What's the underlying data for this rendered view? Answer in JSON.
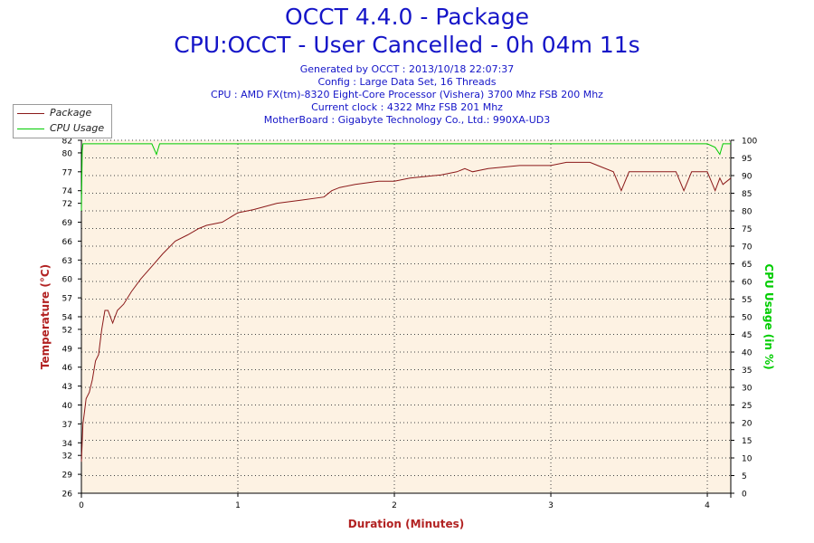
{
  "title": "OCCT 4.4.0 - Package",
  "subtitle": "CPU:OCCT - User Cancelled - 0h 04m 11s",
  "info_lines": [
    "Generated by OCCT : 2013/10/18 22:07:37",
    "Config : Large Data Set, 16 Threads",
    "CPU : AMD FX(tm)-8320 Eight-Core Processor (Vishera) 3700 Mhz FSB 200 Mhz",
    "Current clock : 4322 Mhz FSB 201 Mhz",
    "MotherBoard : Gigabyte Technology Co., Ltd.: 990XA-UD3"
  ],
  "colors": {
    "title": "#1515c8",
    "plot_bg": "#fdf2e3",
    "temperature": "#8b1a1a",
    "cpu_usage": "#00cc00",
    "grid": "#444444"
  },
  "chart_data": {
    "type": "line",
    "xlabel": "Duration (Minutes)",
    "ylabel": "Temperature (°C)",
    "y2label": "CPU Usage (in %)",
    "xlim": [
      0,
      4.15
    ],
    "ylim": [
      26,
      82
    ],
    "y2lim": [
      0,
      100
    ],
    "x_ticks": [
      0,
      1,
      2,
      3,
      4
    ],
    "y_ticks": [
      26,
      29,
      32,
      34,
      37,
      40,
      43,
      46,
      49,
      52,
      54,
      57,
      60,
      63,
      66,
      69,
      72,
      74,
      77,
      80,
      82
    ],
    "y2_ticks": [
      0,
      5,
      10,
      15,
      20,
      25,
      30,
      35,
      40,
      45,
      50,
      55,
      60,
      65,
      70,
      75,
      80,
      85,
      90,
      95,
      100
    ],
    "grid": true,
    "legend": "top-left",
    "legend_entries": [
      "Package",
      "CPU Usage"
    ],
    "series": [
      {
        "name": "Package",
        "axis": "left",
        "x": [
          0,
          0.01,
          0.02,
          0.03,
          0.05,
          0.07,
          0.09,
          0.11,
          0.13,
          0.15,
          0.17,
          0.2,
          0.23,
          0.27,
          0.32,
          0.38,
          0.45,
          0.52,
          0.6,
          0.68,
          0.75,
          0.8,
          0.9,
          1.0,
          1.1,
          1.25,
          1.4,
          1.55,
          1.6,
          1.65,
          1.75,
          1.9,
          2.0,
          2.1,
          2.3,
          2.4,
          2.45,
          2.5,
          2.6,
          2.8,
          2.9,
          3.0,
          3.1,
          3.2,
          3.25,
          3.3,
          3.4,
          3.45,
          3.5,
          3.55,
          3.6,
          3.7,
          3.8,
          3.85,
          3.9,
          3.95,
          4.0,
          4.05,
          4.08,
          4.1,
          4.15
        ],
        "y": [
          31,
          37,
          39,
          41,
          42,
          44,
          47,
          48,
          52,
          55,
          55,
          53,
          55,
          56,
          58,
          60,
          62,
          64,
          66,
          67,
          68,
          68.5,
          69,
          70.5,
          71,
          72,
          72.5,
          73,
          74,
          74.5,
          75,
          75.5,
          75.5,
          76,
          76.5,
          77,
          77.5,
          77,
          77.5,
          78,
          78,
          78,
          78.5,
          78.5,
          78.5,
          78,
          77,
          74,
          77,
          77,
          77,
          77,
          77,
          74,
          77,
          77,
          77,
          74,
          76,
          75,
          76
        ]
      },
      {
        "name": "CPU Usage",
        "axis": "right",
        "x": [
          0,
          0.005,
          0.01,
          0.05,
          0.1,
          0.2,
          0.3,
          0.45,
          0.48,
          0.5,
          0.55,
          0.6,
          0.7,
          0.8,
          0.9,
          1.0,
          1.2,
          1.4,
          1.6,
          1.8,
          2.0,
          2.2,
          2.4,
          2.6,
          2.8,
          3.0,
          3.2,
          3.4,
          3.6,
          3.8,
          4.0,
          4.05,
          4.08,
          4.1,
          4.15
        ],
        "y": [
          80,
          97,
          99,
          99,
          99,
          99,
          99,
          99,
          96,
          99,
          99,
          99,
          99,
          99,
          99,
          99,
          99,
          99,
          99,
          99,
          99,
          99,
          99,
          99,
          99,
          99,
          99,
          99,
          99,
          99,
          99,
          98,
          96,
          99,
          99
        ]
      }
    ]
  }
}
